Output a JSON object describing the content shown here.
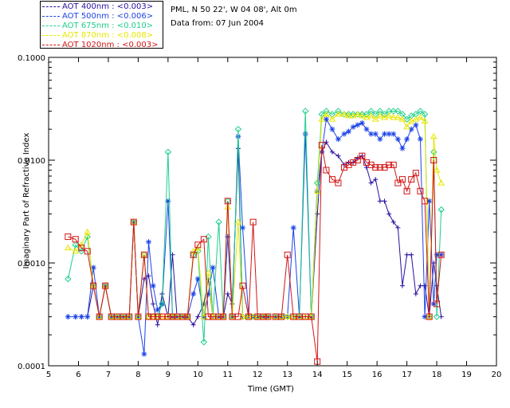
{
  "info": {
    "location": "PML, N 50 22', W 04 08', Alt 0m",
    "date": "Data from: 07 Jun 2004"
  },
  "legend": [
    {
      "label": "AOT  400nm : <0.003>",
      "color": "#2a0fa0"
    },
    {
      "label": "AOT  500nm : <0.006>",
      "color": "#1d43e8"
    },
    {
      "label": "AOT  675nm : <0.010>",
      "color": "#1ccf8a"
    },
    {
      "label": "AOT  870nm : <0.008>",
      "color": "#e6e600"
    },
    {
      "label": "AOT 1020nm : <0.003>",
      "color": "#d41414"
    }
  ],
  "chart_data": {
    "type": "line",
    "title": "",
    "xlabel": "Time (GMT)",
    "ylabel": "Imaginary Part of Refractive Index",
    "xlim": [
      5,
      20
    ],
    "ylim": [
      0.0001,
      0.1
    ],
    "yscale": "log",
    "xticks": [
      "5",
      "6",
      "7",
      "8",
      "9",
      "10",
      "11",
      "12",
      "13",
      "14",
      "15",
      "16",
      "17",
      "18",
      "19",
      "20"
    ],
    "yticks": [
      "0.0001",
      "0.0010",
      "0.0100",
      "0.1000"
    ],
    "series": [
      {
        "name": "AOT 400nm",
        "color": "#2a0fa0",
        "marker": "plus",
        "x": [
          5.65,
          5.9,
          6.1,
          6.3,
          6.5,
          6.7,
          6.9,
          7.1,
          7.3,
          7.5,
          7.7,
          7.85,
          8.0,
          8.2,
          8.35,
          8.5,
          8.65,
          8.8,
          9.0,
          9.15,
          9.3,
          9.5,
          9.65,
          9.85,
          10.0,
          10.2,
          10.35,
          10.5,
          10.7,
          10.85,
          11.0,
          11.15,
          11.35,
          11.5,
          11.7,
          11.85,
          12.0,
          12.2,
          12.35,
          12.6,
          12.8,
          13.0,
          13.2,
          13.4,
          13.6,
          13.8,
          14.0,
          14.15,
          14.3,
          14.5,
          14.7,
          14.9,
          15.05,
          15.2,
          15.35,
          15.5,
          15.65,
          15.8,
          15.95,
          16.1,
          16.25,
          16.4,
          16.55,
          16.7,
          16.85,
          17.0,
          17.15,
          17.3,
          17.45,
          17.6,
          17.75,
          17.9,
          18.0,
          18.15
        ],
        "y": [
          0.0003,
          0.0003,
          0.0003,
          0.0003,
          0.0006,
          0.0003,
          0.0006,
          0.0003,
          0.0003,
          0.0003,
          0.0003,
          0.0025,
          0.0003,
          0.0007,
          0.00075,
          0.0004,
          0.00025,
          0.0005,
          0.0003,
          0.0012,
          0.0003,
          0.0003,
          0.0003,
          0.00025,
          0.0003,
          0.0004,
          0.0007,
          0.0003,
          0.0003,
          0.0003,
          0.0005,
          0.0004,
          0.013,
          0.0003,
          0.0003,
          0.0003,
          0.0003,
          0.0003,
          0.0003,
          0.0003,
          0.0003,
          0.0003,
          0.0003,
          0.0003,
          0.0003,
          0.0003,
          0.003,
          0.012,
          0.015,
          0.012,
          0.011,
          0.009,
          0.0095,
          0.0095,
          0.0105,
          0.011,
          0.0085,
          0.006,
          0.0065,
          0.004,
          0.004,
          0.003,
          0.0025,
          0.0022,
          0.0006,
          0.0012,
          0.0012,
          0.0005,
          0.0006,
          0.0006,
          0.0003,
          0.001,
          0.0006,
          0.0003
        ]
      },
      {
        "name": "AOT 500nm",
        "color": "#1d43e8",
        "marker": "asterisk",
        "x": [
          5.65,
          5.9,
          6.1,
          6.3,
          6.5,
          6.7,
          6.9,
          7.1,
          7.3,
          7.5,
          7.7,
          7.85,
          8.0,
          8.2,
          8.35,
          8.5,
          8.65,
          8.8,
          9.0,
          9.15,
          9.3,
          9.5,
          9.65,
          9.85,
          10.0,
          10.2,
          10.35,
          10.5,
          10.7,
          10.85,
          11.0,
          11.15,
          11.35,
          11.5,
          11.7,
          11.85,
          12.0,
          12.2,
          12.35,
          12.6,
          12.8,
          13.0,
          13.2,
          13.4,
          13.6,
          13.8,
          14.0,
          14.15,
          14.3,
          14.5,
          14.7,
          14.9,
          15.05,
          15.2,
          15.35,
          15.5,
          15.65,
          15.8,
          15.95,
          16.1,
          16.25,
          16.4,
          16.55,
          16.7,
          16.85,
          17.0,
          17.15,
          17.3,
          17.45,
          17.6,
          17.75,
          17.9,
          18.0,
          18.15
        ],
        "y": [
          0.0003,
          0.0003,
          0.0003,
          0.0003,
          0.0009,
          0.0003,
          0.0006,
          0.0003,
          0.0003,
          0.0003,
          0.0003,
          0.0025,
          0.0003,
          0.00013,
          0.0016,
          0.0006,
          0.00035,
          0.0004,
          0.004,
          0.0003,
          0.0003,
          0.0003,
          0.0003,
          0.0005,
          0.0007,
          0.0003,
          0.0005,
          0.0009,
          0.0003,
          0.0003,
          0.0018,
          0.0003,
          0.017,
          0.0022,
          0.0003,
          0.0003,
          0.0003,
          0.0003,
          0.0003,
          0.0003,
          0.0003,
          0.0003,
          0.0022,
          0.0003,
          0.018,
          0.0003,
          0.005,
          0.012,
          0.025,
          0.02,
          0.016,
          0.018,
          0.019,
          0.021,
          0.022,
          0.023,
          0.02,
          0.018,
          0.018,
          0.016,
          0.018,
          0.018,
          0.018,
          0.016,
          0.013,
          0.016,
          0.02,
          0.022,
          0.016,
          0.0003,
          0.004,
          0.0004,
          0.0012,
          0.0012
        ]
      },
      {
        "name": "AOT 675nm",
        "color": "#1ccf8a",
        "marker": "diamond",
        "x": [
          5.65,
          5.9,
          6.1,
          6.3,
          6.5,
          6.7,
          6.9,
          7.1,
          7.3,
          7.5,
          7.7,
          7.85,
          8.0,
          8.2,
          8.35,
          8.5,
          8.65,
          8.8,
          9.0,
          9.15,
          9.3,
          9.5,
          9.65,
          9.85,
          10.0,
          10.2,
          10.35,
          10.5,
          10.7,
          10.85,
          11.0,
          11.15,
          11.35,
          11.5,
          11.7,
          11.85,
          12.0,
          12.2,
          12.35,
          12.6,
          12.8,
          13.0,
          13.2,
          13.4,
          13.6,
          13.8,
          14.0,
          14.15,
          14.3,
          14.5,
          14.7,
          14.9,
          15.05,
          15.2,
          15.35,
          15.5,
          15.65,
          15.8,
          15.95,
          16.1,
          16.25,
          16.4,
          16.55,
          16.7,
          16.85,
          17.0,
          17.15,
          17.3,
          17.45,
          17.6,
          17.75,
          17.9,
          18.0,
          18.15
        ],
        "y": [
          0.0007,
          0.0015,
          0.0013,
          0.0018,
          0.0006,
          0.0003,
          0.0006,
          0.0003,
          0.0003,
          0.0003,
          0.0003,
          0.0025,
          0.0003,
          0.0012,
          0.0003,
          0.0003,
          0.0003,
          0.0004,
          0.012,
          0.0003,
          0.0003,
          0.0003,
          0.0003,
          0.0012,
          0.0013,
          0.00017,
          0.0018,
          0.0003,
          0.0025,
          0.0003,
          0.004,
          0.0003,
          0.02,
          0.0003,
          0.0003,
          0.0003,
          0.0003,
          0.0003,
          0.0003,
          0.0003,
          0.0003,
          0.0003,
          0.0003,
          0.0003,
          0.03,
          0.0003,
          0.006,
          0.028,
          0.03,
          0.028,
          0.03,
          0.028,
          0.028,
          0.028,
          0.028,
          0.028,
          0.028,
          0.03,
          0.028,
          0.03,
          0.028,
          0.03,
          0.03,
          0.03,
          0.028,
          0.025,
          0.027,
          0.028,
          0.03,
          0.028,
          0.0003,
          0.012,
          0.0003,
          0.0033
        ]
      },
      {
        "name": "AOT 870nm",
        "color": "#e6e600",
        "marker": "triangle",
        "x": [
          5.65,
          5.9,
          6.1,
          6.3,
          6.5,
          6.7,
          6.9,
          7.1,
          7.3,
          7.5,
          7.7,
          7.85,
          8.0,
          8.2,
          8.35,
          8.5,
          8.65,
          8.8,
          9.0,
          9.15,
          9.3,
          9.5,
          9.65,
          9.85,
          10.0,
          10.2,
          10.35,
          10.5,
          10.7,
          10.85,
          11.0,
          11.15,
          11.35,
          11.5,
          11.7,
          11.85,
          12.0,
          12.2,
          12.35,
          12.6,
          12.8,
          13.0,
          13.2,
          13.4,
          13.6,
          13.8,
          14.0,
          14.15,
          14.3,
          14.5,
          14.7,
          14.9,
          15.05,
          15.2,
          15.35,
          15.5,
          15.65,
          15.8,
          15.95,
          16.1,
          16.25,
          16.4,
          16.55,
          16.7,
          16.85,
          17.0,
          17.15,
          17.3,
          17.45,
          17.6,
          17.75,
          17.9,
          18.0,
          18.15
        ],
        "y": [
          0.0014,
          0.0013,
          0.0015,
          0.002,
          0.0006,
          0.0003,
          0.0006,
          0.0003,
          0.0003,
          0.0003,
          0.0003,
          0.0025,
          0.0003,
          0.0012,
          0.0003,
          0.0003,
          0.0003,
          0.0003,
          0.0003,
          0.0003,
          0.0003,
          0.0003,
          0.0003,
          0.0013,
          0.0014,
          0.0003,
          0.0008,
          0.0003,
          0.0003,
          0.0003,
          0.0035,
          0.0003,
          0.0025,
          0.0003,
          0.0003,
          0.0003,
          0.0003,
          0.0003,
          0.0003,
          0.0003,
          0.0003,
          0.0003,
          0.0003,
          0.0003,
          0.0003,
          0.0003,
          0.005,
          0.025,
          0.028,
          0.025,
          0.028,
          0.028,
          0.027,
          0.027,
          0.028,
          0.027,
          0.026,
          0.027,
          0.025,
          0.027,
          0.026,
          0.027,
          0.026,
          0.026,
          0.025,
          0.021,
          0.024,
          0.025,
          0.026,
          0.024,
          0.0003,
          0.017,
          0.008,
          0.006
        ]
      },
      {
        "name": "AOT 1020nm",
        "color": "#d41414",
        "marker": "square",
        "x": [
          5.65,
          5.9,
          6.1,
          6.3,
          6.5,
          6.7,
          6.9,
          7.1,
          7.3,
          7.5,
          7.7,
          7.85,
          8.0,
          8.2,
          8.35,
          8.5,
          8.65,
          8.8,
          9.0,
          9.15,
          9.3,
          9.5,
          9.65,
          9.85,
          10.0,
          10.2,
          10.35,
          10.5,
          10.7,
          10.85,
          11.0,
          11.15,
          11.35,
          11.5,
          11.7,
          11.85,
          12.0,
          12.2,
          12.35,
          12.6,
          12.8,
          13.0,
          13.2,
          13.4,
          13.6,
          13.8,
          14.0,
          14.15,
          14.3,
          14.5,
          14.7,
          14.9,
          15.05,
          15.2,
          15.35,
          15.5,
          15.65,
          15.8,
          15.95,
          16.1,
          16.25,
          16.4,
          16.55,
          16.7,
          16.85,
          17.0,
          17.15,
          17.3,
          17.45,
          17.6,
          17.75,
          17.9,
          18.0,
          18.15
        ],
        "y": [
          0.0018,
          0.0017,
          0.0014,
          0.0013,
          0.0006,
          0.0003,
          0.0006,
          0.0003,
          0.0003,
          0.0003,
          0.0003,
          0.0025,
          0.0003,
          0.0012,
          0.0003,
          0.0003,
          0.0003,
          0.0003,
          0.0003,
          0.0003,
          0.0003,
          0.0003,
          0.0003,
          0.0012,
          0.0015,
          0.0017,
          0.0003,
          0.0003,
          0.0003,
          0.0003,
          0.004,
          0.0003,
          0.0003,
          0.0006,
          0.0003,
          0.0025,
          0.0003,
          0.0003,
          0.0003,
          0.0003,
          0.0003,
          0.0012,
          0.0003,
          0.0003,
          0.0003,
          0.0003,
          0.00011,
          0.014,
          0.008,
          0.0065,
          0.006,
          0.0085,
          0.009,
          0.0095,
          0.01,
          0.011,
          0.0095,
          0.009,
          0.0085,
          0.0085,
          0.0085,
          0.009,
          0.009,
          0.006,
          0.0065,
          0.005,
          0.0065,
          0.0075,
          0.005,
          0.004,
          0.0003,
          0.01,
          0.0004,
          0.0012
        ]
      }
    ]
  }
}
